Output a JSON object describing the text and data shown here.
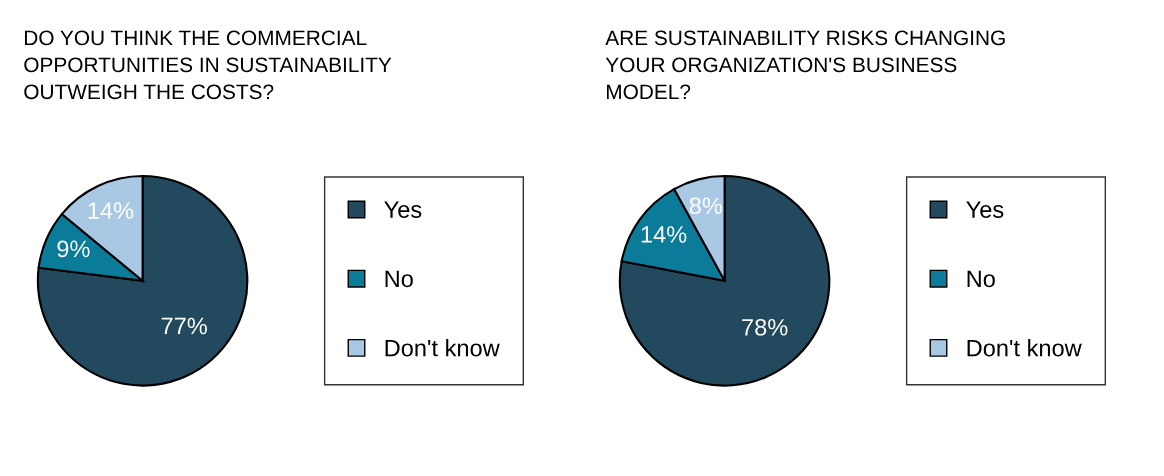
{
  "chart_data": [
    {
      "type": "pie",
      "title": "DO YOU THINK THE COMMERCIAL\nOPPORTUNITIES IN SUSTAINABILITY\nOUTWEIGH THE COSTS?",
      "categories": [
        "Yes",
        "No",
        "Don't know"
      ],
      "values": [
        77,
        9,
        14
      ],
      "colors": [
        "#23495e",
        "#0b7b9a",
        "#a8c8e4"
      ],
      "value_labels": [
        "77%",
        "9%",
        "14%"
      ],
      "legend": "right"
    },
    {
      "type": "pie",
      "title": "ARE SUSTAINABILITY RISKS CHANGING\nYOUR ORGANIZATION'S BUSINESS\nMODEL?",
      "categories": [
        "Yes",
        "No",
        "Don't know"
      ],
      "values": [
        78,
        14,
        8
      ],
      "colors": [
        "#23495e",
        "#0b7b9a",
        "#a8c8e4"
      ],
      "value_labels": [
        "78%",
        "14%",
        "8%"
      ],
      "legend": "right"
    }
  ]
}
